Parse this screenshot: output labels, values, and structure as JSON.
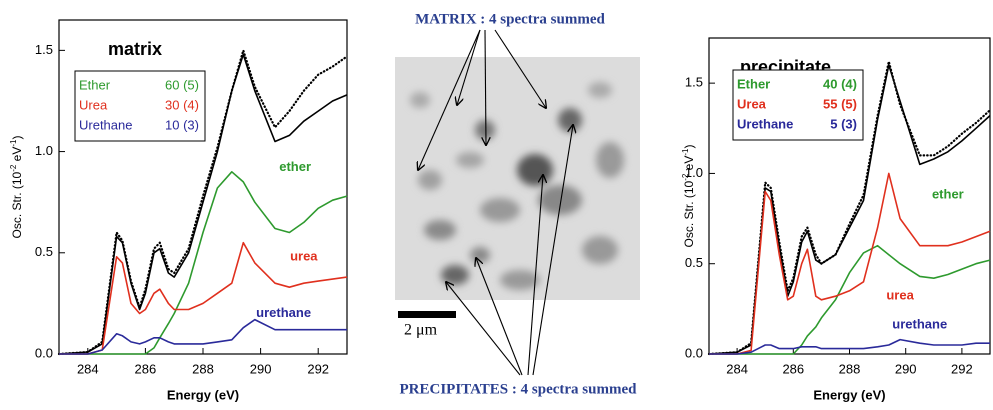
{
  "chart_data": [
    {
      "type": "line",
      "title": "matrix",
      "xlabel": "Energy (eV)",
      "ylabel": [
        "Osc. Str. (10",
        "-2",
        " eV",
        "-1",
        ")"
      ],
      "xlim": [
        283,
        293
      ],
      "xticks": [
        284,
        286,
        288,
        290,
        292
      ],
      "ylim": [
        0,
        1.65
      ],
      "yticks": [
        {
          "value": 0,
          "label": "0.0"
        },
        {
          "value": 0.5,
          "label": "0.5"
        },
        {
          "value": 1,
          "label": "1.0"
        },
        {
          "value": 1.5,
          "label": "1.5"
        }
      ],
      "legend": [
        {
          "name": "Ether",
          "text": "60 (5)",
          "color": "#2e9a2e"
        },
        {
          "name": "Urea",
          "text": "30 (4)",
          "color": "#e0301e"
        },
        {
          "name": "Urethane",
          "text": "10 (3)",
          "color": "#2a2a9a"
        }
      ],
      "x": [
        283,
        284,
        284.5,
        285,
        285.2,
        285.5,
        285.8,
        286,
        286.3,
        286.5,
        286.8,
        287,
        287.5,
        288,
        288.5,
        289,
        289.4,
        289.8,
        290.5,
        291,
        291.5,
        292,
        292.5,
        293
      ],
      "series": [
        {
          "color": "#000000",
          "style": "dotted",
          "values": [
            0,
            0.01,
            0.06,
            0.6,
            0.56,
            0.36,
            0.23,
            0.32,
            0.52,
            0.55,
            0.42,
            0.4,
            0.52,
            0.78,
            1.02,
            1.3,
            1.5,
            1.32,
            1.12,
            1.2,
            1.3,
            1.38,
            1.42,
            1.47
          ]
        },
        {
          "color": "#000000",
          "style": "solid",
          "values": [
            0,
            0.01,
            0.05,
            0.58,
            0.55,
            0.35,
            0.22,
            0.3,
            0.5,
            0.52,
            0.4,
            0.38,
            0.5,
            0.75,
            1.0,
            1.3,
            1.48,
            1.3,
            1.05,
            1.08,
            1.15,
            1.2,
            1.25,
            1.28
          ]
        },
        {
          "name": "ether",
          "color": "#2e9a2e",
          "style": "solid",
          "values": [
            0,
            0,
            0,
            0,
            0,
            0,
            0,
            0,
            0.03,
            0.08,
            0.15,
            0.2,
            0.35,
            0.6,
            0.82,
            0.9,
            0.85,
            0.75,
            0.62,
            0.6,
            0.65,
            0.72,
            0.76,
            0.78
          ]
        },
        {
          "name": "urea",
          "color": "#e0301e",
          "style": "solid",
          "values": [
            0,
            0,
            0.02,
            0.48,
            0.45,
            0.25,
            0.2,
            0.22,
            0.3,
            0.32,
            0.25,
            0.22,
            0.22,
            0.25,
            0.3,
            0.35,
            0.55,
            0.45,
            0.35,
            0.33,
            0.35,
            0.36,
            0.37,
            0.38
          ]
        },
        {
          "name": "urethane",
          "color": "#2a2a9a",
          "style": "solid",
          "values": [
            0,
            0,
            0.02,
            0.1,
            0.09,
            0.06,
            0.05,
            0.06,
            0.08,
            0.08,
            0.06,
            0.05,
            0.05,
            0.05,
            0.06,
            0.07,
            0.13,
            0.17,
            0.12,
            0.12,
            0.12,
            0.12,
            0.12,
            0.12
          ]
        }
      ]
    },
    {
      "type": "line",
      "title": "precipitate",
      "xlabel": "Energy (eV)",
      "ylabel": [
        "Osc. Str. (10",
        "-2",
        " eV",
        "-1",
        ")"
      ],
      "xlim": [
        283,
        293
      ],
      "xticks": [
        284,
        286,
        288,
        290,
        292
      ],
      "ylim": [
        0,
        1.75
      ],
      "yticks": [
        {
          "value": 0,
          "label": "0.0"
        },
        {
          "value": 0.5,
          "label": "0.5"
        },
        {
          "value": 1,
          "label": "1.0"
        },
        {
          "value": 1.5,
          "label": "1.5"
        }
      ],
      "legend": [
        {
          "name": "Ether",
          "text": "40 (4)",
          "color": "#2e9a2e"
        },
        {
          "name": "Urea",
          "text": "55 (5)",
          "color": "#e0301e"
        },
        {
          "name": "Urethane",
          "text": "5 (3)",
          "color": "#2a2a9a"
        }
      ],
      "x": [
        283,
        284,
        284.5,
        285,
        285.2,
        285.5,
        285.8,
        286,
        286.3,
        286.5,
        286.8,
        287,
        287.5,
        288,
        288.5,
        289,
        289.4,
        289.8,
        290.5,
        291,
        291.5,
        292,
        292.5,
        293
      ],
      "series": [
        {
          "color": "#000000",
          "style": "dotted",
          "values": [
            0,
            0.01,
            0.06,
            0.95,
            0.92,
            0.62,
            0.35,
            0.42,
            0.65,
            0.7,
            0.55,
            0.5,
            0.55,
            0.72,
            0.88,
            1.32,
            1.62,
            1.38,
            1.1,
            1.1,
            1.15,
            1.22,
            1.28,
            1.35
          ]
        },
        {
          "color": "#000000",
          "style": "solid",
          "values": [
            0,
            0.01,
            0.05,
            0.92,
            0.9,
            0.6,
            0.32,
            0.4,
            0.62,
            0.68,
            0.52,
            0.5,
            0.55,
            0.7,
            0.85,
            1.3,
            1.6,
            1.4,
            1.05,
            1.08,
            1.12,
            1.18,
            1.25,
            1.32
          ]
        },
        {
          "name": "ether",
          "color": "#2e9a2e",
          "style": "solid",
          "values": [
            0,
            0,
            0,
            0,
            0,
            0,
            0,
            0,
            0.05,
            0.1,
            0.15,
            0.2,
            0.3,
            0.45,
            0.56,
            0.6,
            0.55,
            0.5,
            0.43,
            0.42,
            0.44,
            0.47,
            0.5,
            0.52
          ]
        },
        {
          "name": "urea",
          "color": "#e0301e",
          "style": "solid",
          "values": [
            0,
            0,
            0.02,
            0.9,
            0.85,
            0.55,
            0.3,
            0.32,
            0.5,
            0.58,
            0.32,
            0.3,
            0.32,
            0.35,
            0.4,
            0.7,
            1.0,
            0.75,
            0.6,
            0.6,
            0.6,
            0.62,
            0.65,
            0.68
          ]
        },
        {
          "name": "urethane",
          "color": "#2a2a9a",
          "style": "solid",
          "values": [
            0,
            0,
            0.01,
            0.05,
            0.05,
            0.03,
            0.03,
            0.03,
            0.04,
            0.04,
            0.04,
            0.03,
            0.03,
            0.03,
            0.03,
            0.04,
            0.05,
            0.08,
            0.06,
            0.05,
            0.05,
            0.05,
            0.06,
            0.06
          ]
        }
      ]
    }
  ],
  "image": {
    "top_label": "MATRIX : 4 spectra summed",
    "scale_label": "2 μm",
    "bottom_label": "PRECIPITATES : 4 spectra summed"
  }
}
